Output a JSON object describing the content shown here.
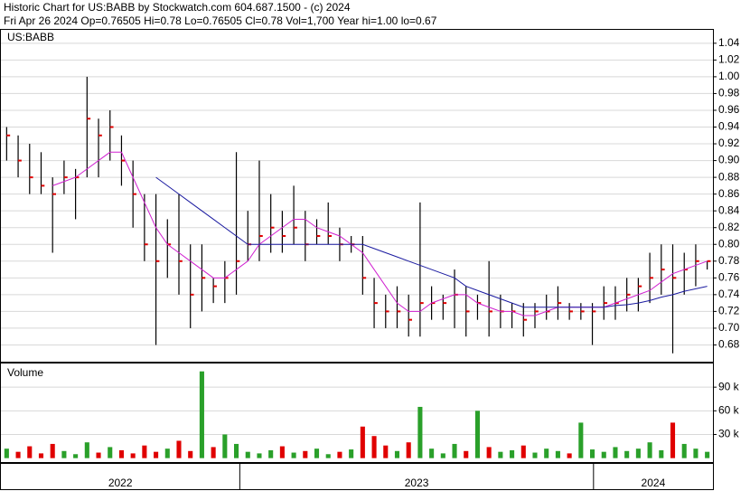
{
  "header": {
    "line1": "Historic Chart for US:BABB by Stockwatch.com 604.687.1500 - (c) 2024",
    "line2": "Fri Apr 26 2024   Op=0.76505   Hi=0.78   Lo=0.76505   Cl=0.78   Vol=1,700   Year hi=1.00   lo=0.67"
  },
  "x_axis": {
    "xlim": [
      0,
      62
    ],
    "spans": [
      {
        "label": "2022",
        "from": 0,
        "to": 20.8
      },
      {
        "label": "2023",
        "from": 20.8,
        "to": 51.6
      },
      {
        "label": "2024",
        "from": 51.6,
        "to": 62
      }
    ]
  },
  "chart_data": [
    {
      "type": "hlc",
      "title": "US:BABB",
      "bar_color": "#000000",
      "close_color": "#e00000",
      "high": [
        0.94,
        0.93,
        0.92,
        0.91,
        0.88,
        0.9,
        0.89,
        1.0,
        0.95,
        0.96,
        0.93,
        0.9,
        0.86,
        0.86,
        0.83,
        0.86,
        0.8,
        0.8,
        0.76,
        0.78,
        0.91,
        0.84,
        0.9,
        0.86,
        0.84,
        0.87,
        0.84,
        0.83,
        0.85,
        0.82,
        0.81,
        0.81,
        0.76,
        0.74,
        0.75,
        0.74,
        0.85,
        0.75,
        0.74,
        0.77,
        0.75,
        0.74,
        0.78,
        0.74,
        0.73,
        0.73,
        0.73,
        0.74,
        0.75,
        0.73,
        0.73,
        0.73,
        0.75,
        0.75,
        0.76,
        0.76,
        0.79,
        0.8,
        0.8,
        0.79,
        0.8,
        0.78
      ],
      "low": [
        0.9,
        0.88,
        0.86,
        0.86,
        0.79,
        0.86,
        0.83,
        0.88,
        0.88,
        0.9,
        0.87,
        0.82,
        0.78,
        0.68,
        0.76,
        0.74,
        0.7,
        0.72,
        0.73,
        0.73,
        0.74,
        0.78,
        0.78,
        0.79,
        0.79,
        0.8,
        0.78,
        0.8,
        0.8,
        0.78,
        0.79,
        0.74,
        0.7,
        0.7,
        0.7,
        0.69,
        0.69,
        0.71,
        0.71,
        0.7,
        0.69,
        0.71,
        0.69,
        0.7,
        0.7,
        0.69,
        0.7,
        0.71,
        0.71,
        0.71,
        0.71,
        0.68,
        0.71,
        0.71,
        0.72,
        0.72,
        0.73,
        0.74,
        0.67,
        0.74,
        0.75,
        0.77
      ],
      "close": [
        0.93,
        0.9,
        0.88,
        0.87,
        0.86,
        0.88,
        0.88,
        0.95,
        0.93,
        0.94,
        0.9,
        0.86,
        0.8,
        0.78,
        0.8,
        0.78,
        0.74,
        0.76,
        0.75,
        0.76,
        0.78,
        0.8,
        0.81,
        0.82,
        0.81,
        0.82,
        0.8,
        0.81,
        0.81,
        0.8,
        0.8,
        0.76,
        0.73,
        0.72,
        0.72,
        0.71,
        0.73,
        0.73,
        0.73,
        0.74,
        0.72,
        0.73,
        0.72,
        0.72,
        0.72,
        0.71,
        0.72,
        0.72,
        0.73,
        0.72,
        0.72,
        0.72,
        0.73,
        0.73,
        0.74,
        0.75,
        0.76,
        0.77,
        0.76,
        0.77,
        0.78,
        0.78
      ],
      "series": [
        {
          "color": "#d020d0",
          "values": [
            null,
            null,
            null,
            null,
            0.87,
            0.875,
            0.88,
            0.89,
            0.9,
            0.91,
            0.91,
            0.88,
            0.85,
            0.82,
            0.8,
            0.79,
            0.78,
            0.77,
            0.76,
            0.76,
            0.77,
            0.78,
            0.8,
            0.81,
            0.82,
            0.83,
            0.83,
            0.82,
            0.815,
            0.81,
            0.8,
            0.79,
            0.77,
            0.75,
            0.73,
            0.72,
            0.72,
            0.73,
            0.735,
            0.74,
            0.74,
            0.73,
            0.725,
            0.72,
            0.72,
            0.715,
            0.715,
            0.72,
            0.725,
            0.725,
            0.725,
            0.725,
            0.725,
            0.73,
            0.735,
            0.74,
            0.745,
            0.755,
            0.765,
            0.77,
            0.775,
            0.78
          ]
        },
        {
          "color": "#1a1aa0",
          "values": [
            null,
            null,
            null,
            null,
            null,
            null,
            null,
            null,
            null,
            null,
            null,
            null,
            null,
            0.88,
            0.87,
            0.86,
            0.85,
            0.84,
            0.83,
            0.82,
            0.81,
            0.8,
            0.8,
            0.8,
            0.8,
            0.8,
            0.8,
            0.8,
            0.8,
            0.8,
            0.8,
            0.8,
            0.795,
            0.79,
            0.785,
            0.78,
            0.775,
            0.77,
            0.765,
            0.76,
            0.75,
            0.745,
            0.74,
            0.735,
            0.73,
            0.725,
            0.725,
            0.725,
            0.725,
            0.725,
            0.725,
            0.725,
            0.725,
            0.727,
            0.728,
            0.73,
            0.733,
            0.737,
            0.74,
            0.744,
            0.747,
            0.75
          ]
        }
      ],
      "ylim": [
        0.66,
        1.056
      ],
      "yticks": [
        {
          "value": 0.68,
          "label": "0.68"
        },
        {
          "value": 0.7,
          "label": "0.70"
        },
        {
          "value": 0.72,
          "label": "0.72"
        },
        {
          "value": 0.74,
          "label": "0.74"
        },
        {
          "value": 0.76,
          "label": "0.76"
        },
        {
          "value": 0.78,
          "label": "0.78"
        },
        {
          "value": 0.8,
          "label": "0.80"
        },
        {
          "value": 0.82,
          "label": "0.82"
        },
        {
          "value": 0.84,
          "label": "0.84"
        },
        {
          "value": 0.86,
          "label": "0.86"
        },
        {
          "value": 0.88,
          "label": "0.88"
        },
        {
          "value": 0.9,
          "label": "0.90"
        },
        {
          "value": 0.92,
          "label": "0.92"
        },
        {
          "value": 0.94,
          "label": "0.94"
        },
        {
          "value": 0.96,
          "label": "0.96"
        },
        {
          "value": 0.98,
          "label": "0.98"
        },
        {
          "value": 1.0,
          "label": "1.00"
        },
        {
          "value": 1.02,
          "label": "1.02"
        },
        {
          "value": 1.04,
          "label": "1.04"
        }
      ],
      "grid": true
    },
    {
      "type": "bar",
      "title": "Volume",
      "up_color": "#2aa02a",
      "down_color": "#e00000",
      "values": [
        12000,
        8000,
        15000,
        6000,
        18000,
        9000,
        5000,
        20000,
        7000,
        14000,
        10000,
        6000,
        16000,
        8000,
        12000,
        22000,
        9000,
        110000,
        14000,
        30000,
        18000,
        8000,
        6000,
        10000,
        15000,
        7000,
        9000,
        12000,
        5000,
        8000,
        11000,
        40000,
        28000,
        16000,
        9000,
        20000,
        65000,
        12000,
        6000,
        18000,
        9000,
        60000,
        14000,
        8000,
        10000,
        16000,
        7000,
        12000,
        9000,
        6000,
        45000,
        11000,
        8000,
        14000,
        9000,
        12000,
        20000,
        10000,
        45000,
        18000,
        12000,
        8000
      ],
      "ylim": [
        -5000,
        120000
      ],
      "yticks": [
        {
          "value": 30000,
          "label": "30 k"
        },
        {
          "value": 60000,
          "label": "60 k"
        },
        {
          "value": 90000,
          "label": "90 k"
        }
      ],
      "grid": true
    }
  ]
}
